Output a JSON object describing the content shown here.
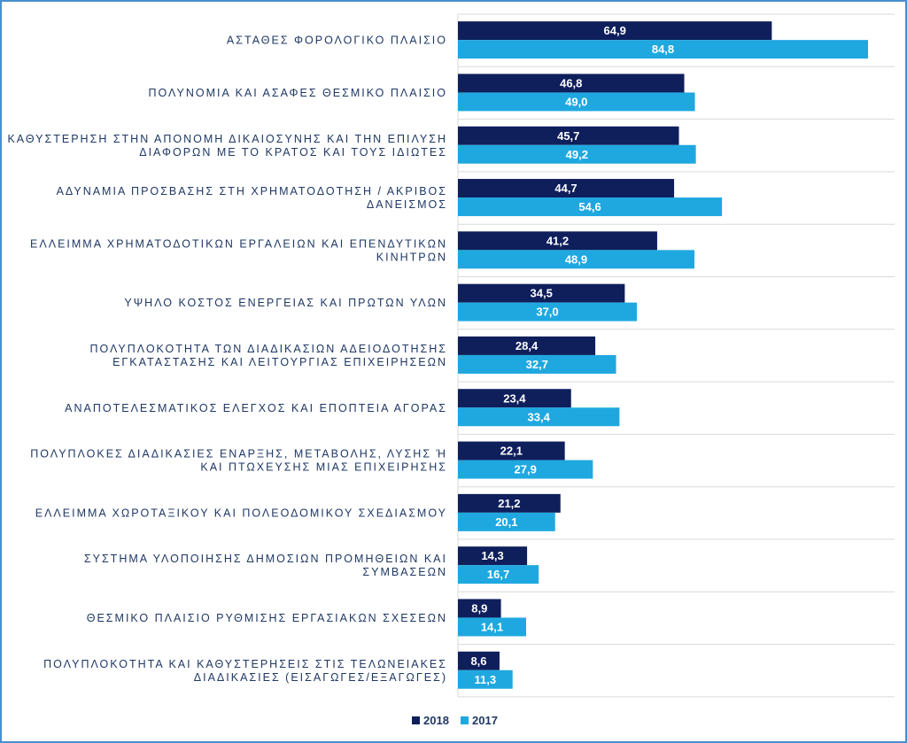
{
  "chart_data": {
    "type": "bar",
    "orientation": "horizontal",
    "categories": [
      [
        "ΑΣΤΑΘΕΣ ΦΟΡΟΛΟΓΙΚΟ ΠΛΑΙΣΙΟ"
      ],
      [
        "ΠΟΛΥΝΟΜΙΑ ΚΑΙ ΑΣΑΦΕΣ ΘΕΣΜΙΚΟ ΠΛΑΙΣΙΟ"
      ],
      [
        "ΚΑΘΥΣΤΕΡΗΣΗ ΣΤΗΝ ΑΠΟΝΟΜΗ ΔΙΚΑΙΟΣΥΝΗΣ ΚΑΙ ΤΗΝ ΕΠΙΛΥΣΗ",
        "ΔΙΑΦΟΡΩΝ ΜΕ ΤΟ ΚΡΑΤΟΣ ΚΑΙ ΤΟΥΣ ΙΔΙΩΤΕΣ"
      ],
      [
        "ΑΔΥΝΑΜΙΑ ΠΡΟΣΒΑΣΗΣ ΣΤΗ ΧΡΗΜΑΤΟΔΟΤΗΣΗ / ΑΚΡΙΒΟΣ",
        "ΔΑΝΕΙΣΜΟΣ"
      ],
      [
        "ΕΛΛΕΙΜΜΑ ΧΡΗΜΑΤΟΔΟΤΙΚΩΝ ΕΡΓΑΛΕΙΩΝ ΚΑΙ ΕΠΕΝΔΥΤΙΚΩΝ",
        "ΚΙΝΗΤΡΩΝ"
      ],
      [
        "ΥΨΗΛΟ ΚΟΣΤΟΣ ΕΝΕΡΓΕΙΑΣ ΚΑΙ ΠΡΩΤΩΝ ΥΛΩΝ"
      ],
      [
        "ΠΟΛΥΠΛΟΚΟΤΗΤΑ ΤΩΝ ΔΙΑΔΙΚΑΣΙΩΝ ΑΔΕΙΟΔΟΤΗΣΗΣ",
        "ΕΓΚΑΤΑΣΤΑΣΗΣ ΚΑΙ ΛΕΙΤΟΥΡΓΙΑΣ ΕΠΙΧΕΙΡΗΣΕΩΝ"
      ],
      [
        "ΑΝΑΠΟΤΕΛΕΣΜΑΤΙΚΟΣ ΕΛΕΓΧΟΣ ΚΑΙ ΕΠΟΠΤΕΙΑ ΑΓΟΡΑΣ"
      ],
      [
        "ΠΟΛΥΠΛΟΚΕΣ ΔΙΑΔΙΚΑΣΙΕΣ ΕΝΑΡΞΗΣ, ΜΕΤΑΒΟΛΗΣ, ΛΥΣΗΣ Ή",
        "ΚΑΙ ΠΤΩΧΕΥΣΗΣ ΜΙΑΣ ΕΠΙΧΕΙΡΗΣΗΣ"
      ],
      [
        "ΕΛΛΕΙΜΜΑ ΧΩΡΟΤΑΞΙΚΟΥ ΚΑΙ ΠΟΛΕΟΔΟΜΙΚΟΥ ΣΧΕΔΙΑΣΜΟΥ"
      ],
      [
        "ΣΥΣΤΗΜΑ ΥΛΟΠΟΙΗΣΗΣ ΔΗΜΟΣΙΩΝ ΠΡΟΜΗΘΕΙΩΝ ΚΑΙ",
        "ΣΥΜΒΑΣΕΩΝ"
      ],
      [
        "ΘΕΣΜΙΚΟ ΠΛΑΙΣΙΟ ΡΥΘΜΙΣΗΣ ΕΡΓΑΣΙΑΚΩΝ ΣΧΕΣΕΩΝ"
      ],
      [
        "ΠΟΛΥΠΛΟΚΟΤΗΤΑ ΚΑΙ ΚΑΘΥΣΤΕΡΗΣΕΙΣ ΣΤΙΣ ΤΕΛΩΝΕΙΑΚΕΣ",
        "ΔΙΑΔΙΚΑΣΙΕΣ (ΕΙΣΑΓΩΓΕΣ/ΕΞΑΓΩΓΕΣ)"
      ]
    ],
    "series": [
      {
        "name": "2018",
        "color": "#0f1f5c",
        "values": [
          64.9,
          46.8,
          45.7,
          44.7,
          41.2,
          34.5,
          28.4,
          23.4,
          22.1,
          21.2,
          14.3,
          8.9,
          8.6
        ],
        "labels": [
          "64,9",
          "46,8",
          "45,7",
          "44,7",
          "41,2",
          "34,5",
          "28,4",
          "23,4",
          "22,1",
          "21,2",
          "14,3",
          "8,9",
          "8,6"
        ]
      },
      {
        "name": "2017",
        "color": "#1fa8e0",
        "values": [
          84.8,
          49.0,
          49.2,
          54.6,
          48.9,
          37.0,
          32.7,
          33.4,
          27.9,
          20.1,
          16.7,
          14.1,
          11.3
        ],
        "labels": [
          "84,8",
          "49,0",
          "49,2",
          "54,6",
          "48,9",
          "37,0",
          "32,7",
          "33,4",
          "27,9",
          "20,1",
          "16,7",
          "14,1",
          "11,3"
        ]
      }
    ],
    "title": "",
    "xlabel": "",
    "ylabel": "",
    "xlim": [
      0,
      92
    ],
    "grid": "horizontal separators between categories",
    "legend_position": "bottom"
  }
}
